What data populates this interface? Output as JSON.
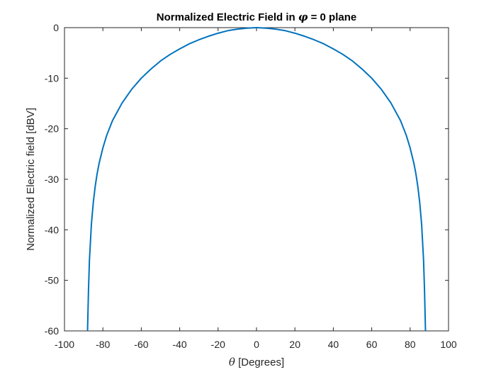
{
  "chart_data": {
    "type": "line",
    "title_prefix": "Normalized Electric Field in ",
    "title_symbol": "φ",
    "title_suffix": " = 0 plane",
    "xlabel_symbol": "θ",
    "xlabel_text": " [Degrees]",
    "ylabel": "Normalized Electric field [dBV]",
    "xlim": [
      -100,
      100
    ],
    "ylim": [
      -60,
      0
    ],
    "xticks": [
      -100,
      -80,
      -60,
      -40,
      -20,
      0,
      20,
      40,
      60,
      80,
      100
    ],
    "yticks": [
      0,
      -10,
      -20,
      -30,
      -40,
      -50,
      -60
    ],
    "xtick_labels": [
      "-100",
      "-80",
      "-60",
      "-40",
      "-20",
      "0",
      "20",
      "40",
      "60",
      "80",
      "100"
    ],
    "ytick_labels": [
      "0",
      "-10",
      "-20",
      "-30",
      "-40",
      "-50",
      "-60"
    ],
    "grid": false,
    "series": [
      {
        "color": "#0072bd",
        "x": [
          -88.0,
          -87.5,
          -87,
          -86,
          -85,
          -84,
          -83,
          -82,
          -80,
          -78,
          -75,
          -70,
          -65,
          -60,
          -55,
          -50,
          -45,
          -40,
          -35,
          -30,
          -25,
          -20,
          -15,
          -10,
          -5,
          0,
          5,
          10,
          15,
          20,
          25,
          30,
          35,
          40,
          45,
          50,
          55,
          60,
          65,
          70,
          75,
          78,
          80,
          82,
          83,
          84,
          85,
          86,
          87,
          87.5,
          88.0
        ],
        "y": [
          -60.0,
          -52.0,
          -46.0,
          -39.0,
          -34.6,
          -31.4,
          -28.9,
          -26.9,
          -23.8,
          -21.3,
          -18.4,
          -14.9,
          -12.2,
          -10.0,
          -8.2,
          -6.6,
          -5.3,
          -4.2,
          -3.2,
          -2.4,
          -1.7,
          -1.1,
          -0.6,
          -0.3,
          -0.1,
          0.0,
          -0.1,
          -0.3,
          -0.6,
          -1.1,
          -1.7,
          -2.4,
          -3.2,
          -4.2,
          -5.3,
          -6.6,
          -8.2,
          -10.0,
          -12.2,
          -14.9,
          -18.4,
          -21.3,
          -23.8,
          -26.9,
          -28.9,
          -31.4,
          -34.6,
          -39.0,
          -46.0,
          -52.0,
          -60.0
        ]
      }
    ]
  }
}
